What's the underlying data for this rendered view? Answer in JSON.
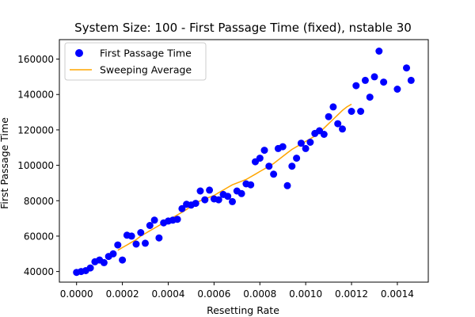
{
  "chart_data": {
    "type": "scatter",
    "title": "System Size: 100 - First Passage Time (fixed), nstable 30",
    "xlabel": "Resetting Rate",
    "ylabel": "First Passage Time",
    "xlim": [
      -7.5e-05,
      0.001535
    ],
    "ylim": [
      34000,
      171000
    ],
    "xticks": [
      0.0,
      0.0002,
      0.0004,
      0.0006,
      0.0008,
      0.001,
      0.0012,
      0.0014
    ],
    "xtick_labels": [
      "0.0000",
      "0.0002",
      "0.0004",
      "0.0006",
      "0.0008",
      "0.0010",
      "0.0012",
      "0.0014"
    ],
    "yticks": [
      40000,
      60000,
      80000,
      100000,
      120000,
      140000,
      160000
    ],
    "ytick_labels": [
      "40000",
      "60000",
      "80000",
      "100000",
      "120000",
      "140000",
      "160000"
    ],
    "grid": false,
    "legend_position": "top-left",
    "series": [
      {
        "name": "First Passage Time",
        "kind": "scatter",
        "color": "#0000ff",
        "points": [
          [
            0.0,
            39500
          ],
          [
            2e-05,
            40000
          ],
          [
            4e-05,
            40500
          ],
          [
            6e-05,
            42000
          ],
          [
            8e-05,
            45500
          ],
          [
            0.0001,
            46500
          ],
          [
            0.00012,
            45000
          ],
          [
            0.00014,
            48500
          ],
          [
            0.00016,
            50000
          ],
          [
            0.00018,
            55000
          ],
          [
            0.0002,
            46500
          ],
          [
            0.00022,
            60500
          ],
          [
            0.00024,
            60000
          ],
          [
            0.00026,
            55500
          ],
          [
            0.00028,
            62000
          ],
          [
            0.0003,
            56000
          ],
          [
            0.00032,
            66000
          ],
          [
            0.00034,
            69000
          ],
          [
            0.00036,
            59000
          ],
          [
            0.00038,
            67500
          ],
          [
            0.0004,
            68500
          ],
          [
            0.00042,
            69000
          ],
          [
            0.00044,
            69500
          ],
          [
            0.00046,
            75500
          ],
          [
            0.00048,
            78000
          ],
          [
            0.0005,
            77500
          ],
          [
            0.00052,
            78500
          ],
          [
            0.00054,
            85500
          ],
          [
            0.00056,
            80500
          ],
          [
            0.00058,
            86000
          ],
          [
            0.0006,
            81000
          ],
          [
            0.00062,
            80500
          ],
          [
            0.00064,
            83500
          ],
          [
            0.00066,
            82500
          ],
          [
            0.00068,
            79500
          ],
          [
            0.0007,
            85500
          ],
          [
            0.00072,
            84000
          ],
          [
            0.00074,
            89500
          ],
          [
            0.00076,
            89000
          ],
          [
            0.00078,
            102000
          ],
          [
            0.0008,
            104000
          ],
          [
            0.00082,
            108500
          ],
          [
            0.00084,
            99500
          ],
          [
            0.00086,
            95000
          ],
          [
            0.00088,
            109500
          ],
          [
            0.0009,
            110500
          ],
          [
            0.00092,
            88500
          ],
          [
            0.00094,
            99500
          ],
          [
            0.00096,
            104000
          ],
          [
            0.00098,
            112500
          ],
          [
            0.001,
            109500
          ],
          [
            0.00102,
            113000
          ],
          [
            0.00104,
            118000
          ],
          [
            0.00106,
            119500
          ],
          [
            0.00108,
            117500
          ],
          [
            0.0011,
            127500
          ],
          [
            0.00112,
            133000
          ],
          [
            0.00114,
            123500
          ],
          [
            0.00116,
            120500
          ],
          [
            0.0012,
            130500
          ],
          [
            0.00122,
            145000
          ],
          [
            0.00124,
            130500
          ],
          [
            0.00126,
            148000
          ],
          [
            0.00128,
            138500
          ],
          [
            0.0013,
            150000
          ],
          [
            0.00132,
            164500
          ],
          [
            0.00134,
            147000
          ],
          [
            0.0014,
            143000
          ],
          [
            0.00144,
            155000
          ],
          [
            0.00146,
            148000
          ]
        ]
      },
      {
        "name": "Sweeping Average",
        "kind": "line",
        "color": "#ffa500",
        "points": [
          [
            0.00018,
            52000
          ],
          [
            0.0002,
            53500
          ],
          [
            0.00022,
            55000
          ],
          [
            0.00024,
            56500
          ],
          [
            0.00026,
            58000
          ],
          [
            0.00028,
            60000
          ],
          [
            0.0003,
            61500
          ],
          [
            0.00032,
            63000
          ],
          [
            0.00034,
            64500
          ],
          [
            0.00036,
            66000
          ],
          [
            0.00038,
            67500
          ],
          [
            0.0004,
            69000
          ],
          [
            0.00042,
            70500
          ],
          [
            0.00044,
            72000
          ],
          [
            0.00046,
            73500
          ],
          [
            0.00048,
            75000
          ],
          [
            0.0005,
            77000
          ],
          [
            0.00052,
            78500
          ],
          [
            0.00054,
            80000
          ],
          [
            0.00056,
            81000
          ],
          [
            0.00058,
            82000
          ],
          [
            0.0006,
            83000
          ],
          [
            0.00062,
            84500
          ],
          [
            0.00064,
            86000
          ],
          [
            0.00066,
            87500
          ],
          [
            0.00068,
            89000
          ],
          [
            0.0007,
            90000
          ],
          [
            0.00072,
            91000
          ],
          [
            0.00074,
            92000
          ],
          [
            0.00076,
            93500
          ],
          [
            0.00078,
            95000
          ],
          [
            0.0008,
            96500
          ],
          [
            0.00082,
            98000
          ],
          [
            0.00084,
            99500
          ],
          [
            0.00086,
            101000
          ],
          [
            0.00088,
            103000
          ],
          [
            0.0009,
            105000
          ],
          [
            0.00092,
            107000
          ],
          [
            0.00094,
            109000
          ],
          [
            0.00096,
            110500
          ],
          [
            0.00098,
            112000
          ],
          [
            0.001,
            113500
          ],
          [
            0.00102,
            115000
          ],
          [
            0.00104,
            116500
          ],
          [
            0.00106,
            118500
          ],
          [
            0.00108,
            121000
          ],
          [
            0.0011,
            123500
          ],
          [
            0.00112,
            126000
          ],
          [
            0.00114,
            128500
          ],
          [
            0.00116,
            131000
          ],
          [
            0.00118,
            133000
          ],
          [
            0.0012,
            134500
          ]
        ]
      }
    ]
  }
}
